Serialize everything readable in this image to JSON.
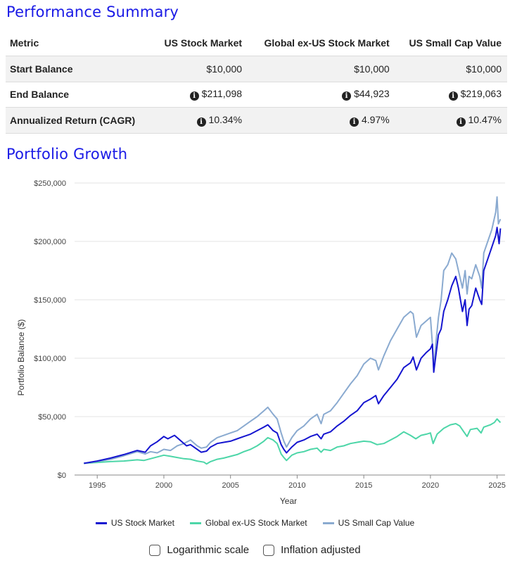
{
  "summary": {
    "title": "Performance Summary",
    "headers": [
      "Metric",
      "US Stock Market",
      "Global ex-US Stock Market",
      "US Small Cap Value"
    ],
    "rows": [
      {
        "label": "Start Balance",
        "values": [
          "$10,000",
          "$10,000",
          "$10,000"
        ],
        "info": false
      },
      {
        "label": "End Balance",
        "values": [
          "$211,098",
          "$44,923",
          "$219,063"
        ],
        "info": true
      },
      {
        "label": "Annualized Return (CAGR)",
        "values": [
          "10.34%",
          "4.97%",
          "10.47%"
        ],
        "info": true
      }
    ]
  },
  "growth": {
    "title": "Portfolio Growth"
  },
  "chart_data": {
    "type": "line",
    "xlabel": "Year",
    "ylabel": "Portfolio Balance ($)",
    "xlim": [
      1993.3,
      2025.6
    ],
    "ylim": [
      0,
      250000
    ],
    "yticks": [
      0,
      50000,
      100000,
      150000,
      200000,
      250000
    ],
    "ytick_labels": [
      "$0",
      "$50,000",
      "$100,000",
      "$150,000",
      "$200,000",
      "$250,000"
    ],
    "xticks": [
      1995,
      2000,
      2005,
      2010,
      2015,
      2020,
      2025
    ],
    "xtick_labels": [
      "1995",
      "2000",
      "2005",
      "2010",
      "2015",
      "2020",
      "2025"
    ],
    "grid": true,
    "legend_position": "bottom",
    "series": [
      {
        "name": "US Stock Market",
        "color": "#1515d0",
        "x": [
          1994.0,
          1995.0,
          1996.0,
          1997.0,
          1998.0,
          1998.6,
          1999.0,
          1999.5,
          2000.0,
          2000.3,
          2000.8,
          2001.3,
          2001.7,
          2002.0,
          2002.5,
          2002.8,
          2003.2,
          2003.5,
          2004.0,
          2004.5,
          2005.0,
          2005.5,
          2006.0,
          2006.5,
          2007.0,
          2007.5,
          2007.8,
          2008.2,
          2008.5,
          2008.8,
          2009.0,
          2009.2,
          2009.6,
          2010.0,
          2010.5,
          2011.0,
          2011.5,
          2011.8,
          2012.0,
          2012.5,
          2013.0,
          2013.5,
          2014.0,
          2014.5,
          2015.0,
          2015.5,
          2015.9,
          2016.1,
          2016.5,
          2017.0,
          2017.5,
          2018.0,
          2018.5,
          2018.7,
          2018.95,
          2019.3,
          2019.7,
          2020.0,
          2020.15,
          2020.25,
          2020.4,
          2020.6,
          2020.8,
          2021.0,
          2021.3,
          2021.6,
          2021.9,
          2022.1,
          2022.4,
          2022.6,
          2022.75,
          2022.9,
          2023.1,
          2023.4,
          2023.7,
          2023.85,
          2024.0,
          2024.3,
          2024.6,
          2024.9,
          2025.0,
          2025.15,
          2025.25
        ],
        "values": [
          10000,
          12000,
          14500,
          17500,
          21000,
          19500,
          25000,
          28500,
          33000,
          31000,
          34000,
          29000,
          25000,
          26000,
          22000,
          19500,
          20500,
          24000,
          27000,
          28000,
          29000,
          31000,
          33000,
          35000,
          38000,
          41000,
          43000,
          38000,
          36000,
          26000,
          22000,
          19000,
          24000,
          28000,
          30000,
          33000,
          35000,
          31000,
          35000,
          37000,
          42000,
          46000,
          51000,
          55000,
          62000,
          65000,
          68000,
          61000,
          68000,
          75000,
          82000,
          92000,
          96000,
          101000,
          90000,
          100000,
          105000,
          108000,
          112000,
          88000,
          102000,
          120000,
          125000,
          140000,
          150000,
          162000,
          170000,
          160000,
          140000,
          150000,
          128000,
          142000,
          145000,
          160000,
          150000,
          146000,
          175000,
          185000,
          195000,
          205000,
          212000,
          198000,
          211098
        ]
      },
      {
        "name": "Global ex-US Stock Market",
        "color": "#4dd6a8",
        "x": [
          1994.0,
          1995.0,
          1996.0,
          1997.0,
          1998.0,
          1998.5,
          1999.0,
          1999.5,
          2000.0,
          2000.5,
          2001.0,
          2001.5,
          2002.0,
          2002.5,
          2003.0,
          2003.2,
          2003.5,
          2004.0,
          2004.5,
          2005.0,
          2005.5,
          2006.0,
          2006.5,
          2007.0,
          2007.5,
          2007.8,
          2008.2,
          2008.5,
          2008.8,
          2009.0,
          2009.2,
          2009.6,
          2010.0,
          2010.5,
          2011.0,
          2011.5,
          2011.8,
          2012.0,
          2012.5,
          2013.0,
          2013.5,
          2014.0,
          2014.5,
          2015.0,
          2015.5,
          2016.0,
          2016.5,
          2017.0,
          2017.5,
          2018.0,
          2018.5,
          2018.9,
          2019.3,
          2019.7,
          2020.0,
          2020.2,
          2020.5,
          2021.0,
          2021.5,
          2021.9,
          2022.2,
          2022.5,
          2022.75,
          2023.0,
          2023.5,
          2023.8,
          2024.0,
          2024.5,
          2024.8,
          2025.0,
          2025.25
        ],
        "values": [
          10000,
          10800,
          11500,
          12000,
          13000,
          12500,
          14000,
          15500,
          17000,
          16000,
          15000,
          14000,
          13500,
          12000,
          11000,
          9500,
          11500,
          13500,
          14500,
          16000,
          17500,
          20000,
          22000,
          25000,
          29000,
          32000,
          30000,
          27000,
          18000,
          15000,
          12500,
          17000,
          19000,
          20000,
          22000,
          23000,
          19500,
          22000,
          21000,
          24000,
          25000,
          27000,
          28000,
          29000,
          28500,
          26000,
          27000,
          30000,
          33000,
          37000,
          34000,
          31000,
          34000,
          35000,
          36000,
          27000,
          35000,
          40000,
          43000,
          44000,
          42000,
          37000,
          33000,
          39000,
          40000,
          36000,
          41000,
          43000,
          45000,
          48000,
          44923
        ]
      },
      {
        "name": "US Small Cap Value",
        "color": "#8aaad0",
        "x": [
          1994.0,
          1995.0,
          1996.0,
          1997.0,
          1998.0,
          1998.6,
          1999.0,
          1999.5,
          2000.0,
          2000.5,
          2001.0,
          2001.5,
          2002.0,
          2002.5,
          2002.8,
          2003.2,
          2003.5,
          2004.0,
          2004.5,
          2005.0,
          2005.5,
          2006.0,
          2006.5,
          2007.0,
          2007.5,
          2007.8,
          2008.2,
          2008.5,
          2008.8,
          2009.0,
          2009.2,
          2009.6,
          2010.0,
          2010.5,
          2011.0,
          2011.5,
          2011.8,
          2012.0,
          2012.5,
          2013.0,
          2013.5,
          2014.0,
          2014.5,
          2015.0,
          2015.5,
          2015.9,
          2016.1,
          2016.5,
          2017.0,
          2017.5,
          2018.0,
          2018.5,
          2018.7,
          2018.95,
          2019.3,
          2019.7,
          2020.0,
          2020.15,
          2020.25,
          2020.4,
          2020.6,
          2020.8,
          2021.0,
          2021.3,
          2021.6,
          2021.9,
          2022.1,
          2022.4,
          2022.6,
          2022.75,
          2022.9,
          2023.1,
          2023.4,
          2023.7,
          2023.85,
          2024.0,
          2024.3,
          2024.6,
          2024.9,
          2025.0,
          2025.1,
          2025.25
        ],
        "values": [
          10000,
          11500,
          13500,
          16500,
          20000,
          18000,
          20000,
          19000,
          22000,
          21000,
          25000,
          27000,
          30000,
          25000,
          23000,
          24000,
          28000,
          32000,
          34000,
          36000,
          38000,
          42000,
          46000,
          50000,
          55000,
          58000,
          52000,
          48000,
          36000,
          29000,
          24000,
          32000,
          38000,
          42000,
          48000,
          52000,
          44000,
          52000,
          55000,
          62000,
          70000,
          78000,
          85000,
          95000,
          100000,
          98000,
          90000,
          102000,
          115000,
          125000,
          135000,
          140000,
          138000,
          118000,
          128000,
          132000,
          135000,
          112000,
          90000,
          112000,
          135000,
          150000,
          175000,
          180000,
          190000,
          185000,
          175000,
          160000,
          175000,
          155000,
          170000,
          168000,
          180000,
          170000,
          160000,
          190000,
          200000,
          210000,
          225000,
          238000,
          215000,
          219063
        ]
      }
    ]
  },
  "options": [
    {
      "label": "Logarithmic scale",
      "checked": false
    },
    {
      "label": "Inflation adjusted",
      "checked": false
    }
  ]
}
